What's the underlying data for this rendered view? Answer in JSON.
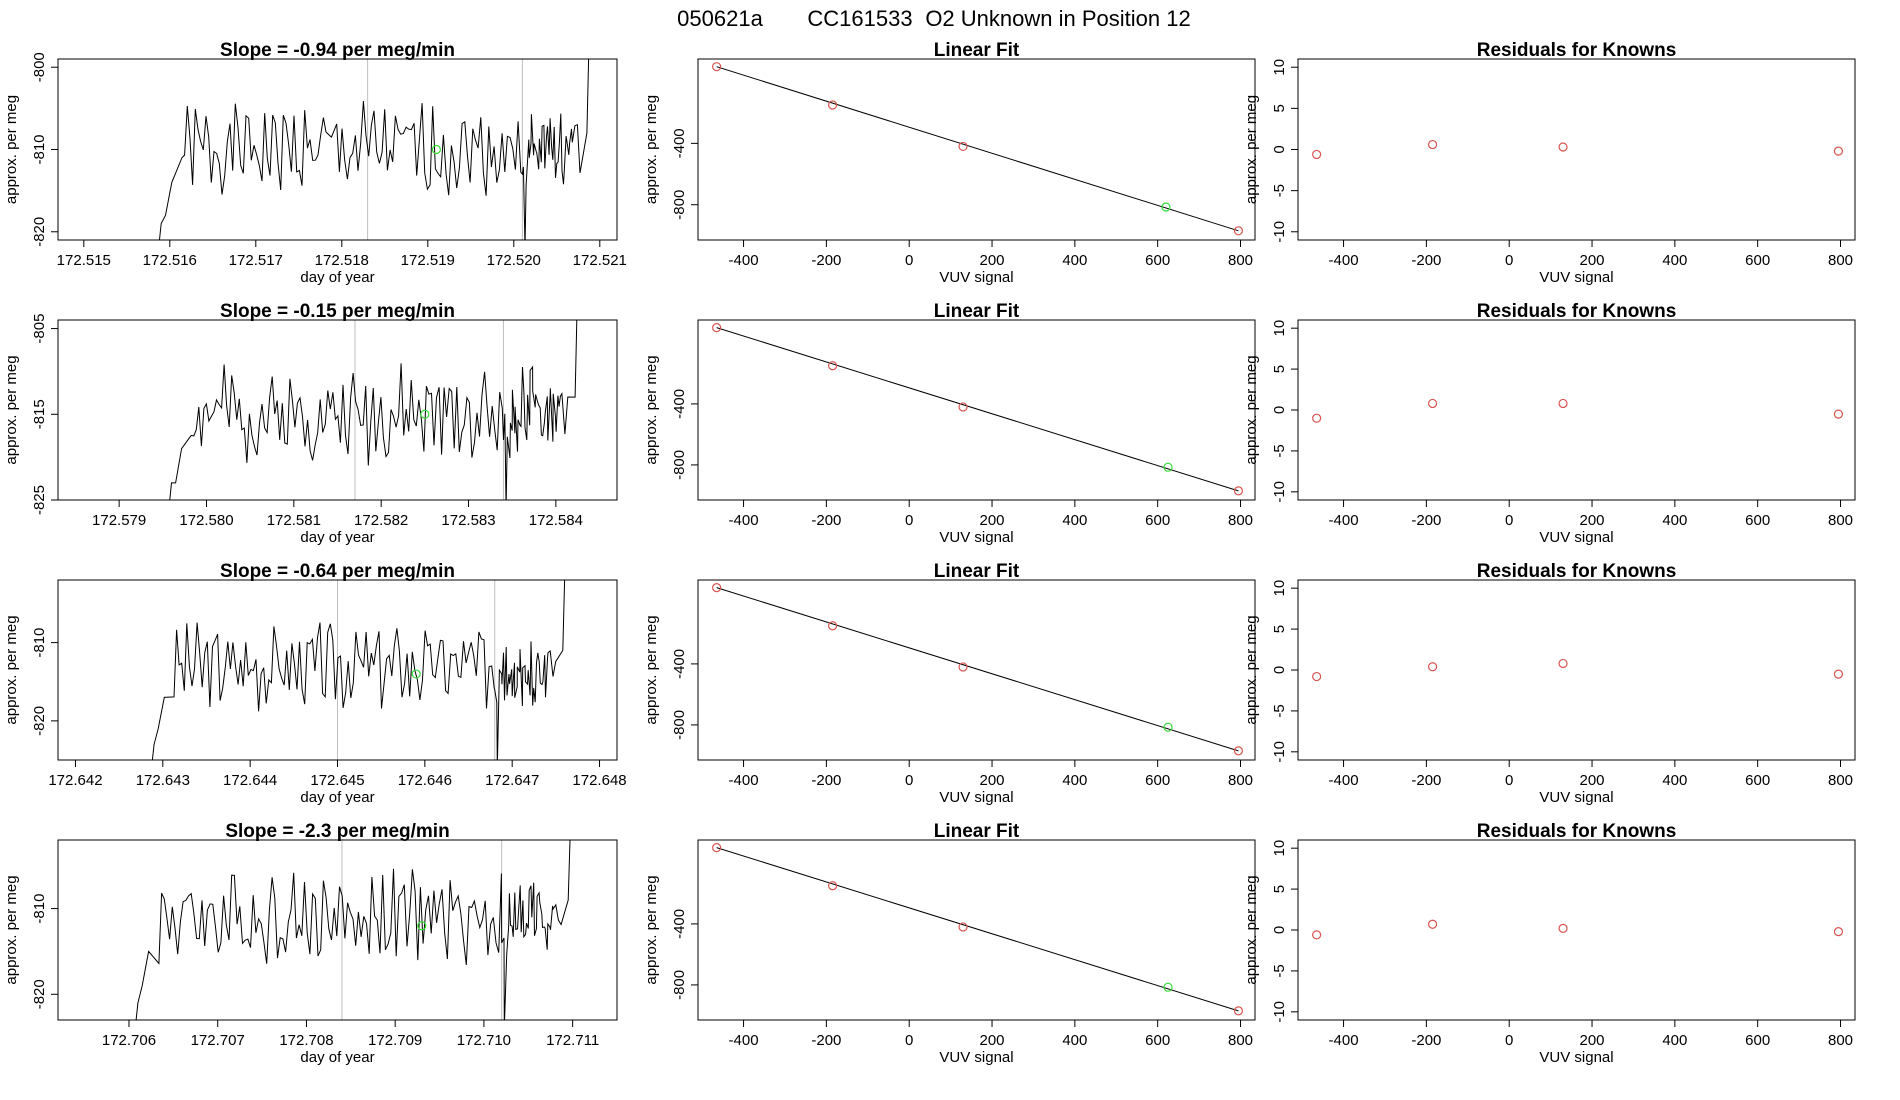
{
  "figure": {
    "title_parts": [
      "050621a",
      "CC161533",
      "O2 Unknown in Position  12"
    ]
  },
  "colors": {
    "series_line": "#000000",
    "known_points": "#d9534f",
    "unknown_point": "#33dd33",
    "guide_line": "#bfbfbf",
    "frame": "#000000"
  },
  "chart_data": [
    {
      "type": "line",
      "row": 0,
      "col": 0,
      "title": "Slope =  -0.94  per meg/min",
      "xlabel": "day of year",
      "ylabel": "approx. per meg",
      "xlim": [
        172.5147,
        172.5212
      ],
      "ylim": [
        -821,
        -799
      ],
      "xticks": [
        172.515,
        172.516,
        172.517,
        172.518,
        172.519,
        172.52,
        172.521
      ],
      "xtick_labels": [
        "172.515",
        "172.516",
        "172.517",
        "172.518",
        "172.519",
        "172.520",
        "172.521"
      ],
      "yticks": [
        -800,
        -810,
        -820
      ],
      "ytick_labels": [
        "-800",
        "-810",
        "-820"
      ],
      "series_start": 172.5159,
      "series_end": 172.52085,
      "series_base": -810,
      "series_amp": 4.5,
      "seed": 1,
      "vlines": [
        172.5183,
        172.5201
      ],
      "highlight": {
        "x": 172.5191,
        "y": -810
      },
      "head": -822,
      "tail": -799
    },
    {
      "type": "scatter",
      "row": 0,
      "col": 1,
      "title": "Linear Fit",
      "xlabel": "VUV signal",
      "ylabel": "approx. per meg",
      "xlim": [
        -510,
        835
      ],
      "ylim": [
        -1030,
        150
      ],
      "xticks": [
        -400,
        -200,
        0,
        200,
        400,
        600,
        800
      ],
      "xtick_labels": [
        "-400",
        "-200",
        "0",
        "200",
        "400",
        "600",
        "800"
      ],
      "yticks": [
        -400,
        -800
      ],
      "ytick_labels": [
        "-400",
        "-800"
      ],
      "knowns": [
        [
          -465,
          100
        ],
        [
          -185,
          -150
        ],
        [
          130,
          -420
        ],
        [
          795,
          -970
        ]
      ],
      "unknown": [
        620,
        -815
      ],
      "fit_line": [
        [
          -465,
          100
        ],
        [
          795,
          -970
        ]
      ]
    },
    {
      "type": "scatter",
      "row": 0,
      "col": 2,
      "title": "Residuals for Knowns",
      "xlabel": "VUV signal",
      "ylabel": "approx. per meg",
      "xlim": [
        -510,
        835
      ],
      "ylim": [
        -11,
        11
      ],
      "xticks": [
        -400,
        -200,
        0,
        200,
        400,
        600,
        800
      ],
      "xtick_labels": [
        "-400",
        "-200",
        "0",
        "200",
        "400",
        "600",
        "800"
      ],
      "yticks": [
        10,
        5,
        0,
        -5,
        -10
      ],
      "ytick_labels": [
        "10",
        "5",
        "0",
        "-5",
        "-10"
      ],
      "knowns": [
        [
          -465,
          -0.6
        ],
        [
          -185,
          0.6
        ],
        [
          130,
          0.3
        ],
        [
          795,
          -0.2
        ]
      ]
    },
    {
      "type": "line",
      "row": 1,
      "col": 0,
      "title": "Slope =  -0.15  per meg/min",
      "xlabel": "day of year",
      "ylabel": "approx. per meg",
      "xlim": [
        172.5783,
        172.5847
      ],
      "ylim": [
        -825,
        -804
      ],
      "xticks": [
        172.579,
        172.58,
        172.581,
        172.582,
        172.583,
        172.584
      ],
      "xtick_labels": [
        "172.579",
        "172.580",
        "172.581",
        "172.582",
        "172.583",
        "172.584"
      ],
      "yticks": [
        -805,
        -815,
        -825
      ],
      "ytick_labels": [
        "-805",
        "-815",
        "-825"
      ],
      "series_start": 172.5796,
      "series_end": 172.58422,
      "series_base": -815,
      "series_amp": 4.5,
      "seed": 2,
      "vlines": [
        172.5817,
        172.5834
      ],
      "highlight": {
        "x": 172.5825,
        "y": -815
      },
      "head": -826,
      "tail": -804
    },
    {
      "type": "scatter",
      "row": 1,
      "col": 1,
      "title": "Linear Fit",
      "xlabel": "VUV signal",
      "ylabel": "approx. per meg",
      "xlim": [
        -510,
        835
      ],
      "ylim": [
        -1030,
        150
      ],
      "xticks": [
        -400,
        -200,
        0,
        200,
        400,
        600,
        800
      ],
      "xtick_labels": [
        "-400",
        "-200",
        "0",
        "200",
        "400",
        "600",
        "800"
      ],
      "yticks": [
        -400,
        -800
      ],
      "ytick_labels": [
        "-400",
        "-800"
      ],
      "knowns": [
        [
          -465,
          100
        ],
        [
          -185,
          -150
        ],
        [
          130,
          -420
        ],
        [
          795,
          -970
        ]
      ],
      "unknown": [
        625,
        -815
      ],
      "fit_line": [
        [
          -465,
          100
        ],
        [
          795,
          -970
        ]
      ]
    },
    {
      "type": "scatter",
      "row": 1,
      "col": 2,
      "title": "Residuals for Knowns",
      "xlabel": "VUV signal",
      "ylabel": "approx. per meg",
      "xlim": [
        -510,
        835
      ],
      "ylim": [
        -11,
        11
      ],
      "xticks": [
        -400,
        -200,
        0,
        200,
        400,
        600,
        800
      ],
      "xtick_labels": [
        "-400",
        "-200",
        "0",
        "200",
        "400",
        "600",
        "800"
      ],
      "yticks": [
        10,
        5,
        0,
        -5,
        -10
      ],
      "ytick_labels": [
        "10",
        "5",
        "0",
        "-5",
        "-10"
      ],
      "knowns": [
        [
          -465,
          -1.0
        ],
        [
          -185,
          0.8
        ],
        [
          130,
          0.8
        ],
        [
          795,
          -0.5
        ]
      ]
    },
    {
      "type": "line",
      "row": 2,
      "col": 0,
      "title": "Slope =  -0.64  per meg/min",
      "xlabel": "day of year",
      "ylabel": "approx. per meg",
      "xlim": [
        172.6418,
        172.6482
      ],
      "ylim": [
        -825,
        -802
      ],
      "xticks": [
        172.642,
        172.643,
        172.644,
        172.645,
        172.646,
        172.647,
        172.648
      ],
      "xtick_labels": [
        "172.642",
        "172.643",
        "172.644",
        "172.645",
        "172.646",
        "172.647",
        "172.648"
      ],
      "yticks": [
        -810,
        -820
      ],
      "ytick_labels": [
        "-810",
        "-820"
      ],
      "series_start": 172.6429,
      "series_end": 172.64758,
      "series_base": -813,
      "series_amp": 4.5,
      "seed": 3,
      "vlines": [
        172.645,
        172.6468
      ],
      "highlight": {
        "x": 172.6459,
        "y": -814
      },
      "head": -826,
      "tail": -802
    },
    {
      "type": "scatter",
      "row": 2,
      "col": 1,
      "title": "Linear Fit",
      "xlabel": "VUV signal",
      "ylabel": "approx. per meg",
      "xlim": [
        -510,
        835
      ],
      "ylim": [
        -1030,
        150
      ],
      "xticks": [
        -400,
        -200,
        0,
        200,
        400,
        600,
        800
      ],
      "xtick_labels": [
        "-400",
        "-200",
        "0",
        "200",
        "400",
        "600",
        "800"
      ],
      "yticks": [
        -400,
        -800
      ],
      "ytick_labels": [
        "-400",
        "-800"
      ],
      "knowns": [
        [
          -465,
          100
        ],
        [
          -185,
          -150
        ],
        [
          130,
          -420
        ],
        [
          795,
          -970
        ]
      ],
      "unknown": [
        625,
        -815
      ],
      "fit_line": [
        [
          -465,
          100
        ],
        [
          795,
          -970
        ]
      ]
    },
    {
      "type": "scatter",
      "row": 2,
      "col": 2,
      "title": "Residuals for Knowns",
      "xlabel": "VUV signal",
      "ylabel": "approx. per meg",
      "xlim": [
        -510,
        835
      ],
      "ylim": [
        -11,
        11
      ],
      "xticks": [
        -400,
        -200,
        0,
        200,
        400,
        600,
        800
      ],
      "xtick_labels": [
        "-400",
        "-200",
        "0",
        "200",
        "400",
        "600",
        "800"
      ],
      "yticks": [
        10,
        5,
        0,
        -5,
        -10
      ],
      "ytick_labels": [
        "10",
        "5",
        "0",
        "-5",
        "-10"
      ],
      "knowns": [
        [
          -465,
          -0.8
        ],
        [
          -185,
          0.4
        ],
        [
          130,
          0.8
        ],
        [
          795,
          -0.5
        ]
      ]
    },
    {
      "type": "line",
      "row": 3,
      "col": 0,
      "title": "Slope =  -2.3  per meg/min",
      "xlabel": "day of year",
      "ylabel": "approx. per meg",
      "xlim": [
        172.7052,
        172.7115
      ],
      "ylim": [
        -823,
        -802
      ],
      "xticks": [
        172.706,
        172.707,
        172.708,
        172.709,
        172.71,
        172.711
      ],
      "xtick_labels": [
        "172.706",
        "172.707",
        "172.708",
        "172.709",
        "172.710",
        "172.711"
      ],
      "yticks": [
        -810,
        -820
      ],
      "ytick_labels": [
        "-810",
        "-820"
      ],
      "series_start": 172.7061,
      "series_end": 172.71095,
      "series_base": -811,
      "series_amp": 4.5,
      "seed": 4,
      "vlines": [
        172.7084,
        172.7102
      ],
      "highlight": {
        "x": 172.7093,
        "y": -812
      },
      "head": -824,
      "tail": -802
    },
    {
      "type": "scatter",
      "row": 3,
      "col": 1,
      "title": "Linear Fit",
      "xlabel": "VUV signal",
      "ylabel": "approx. per meg",
      "xlim": [
        -510,
        835
      ],
      "ylim": [
        -1030,
        150
      ],
      "xticks": [
        -400,
        -200,
        0,
        200,
        400,
        600,
        800
      ],
      "xtick_labels": [
        "-400",
        "-200",
        "0",
        "200",
        "400",
        "600",
        "800"
      ],
      "yticks": [
        -400,
        -800
      ],
      "ytick_labels": [
        "-400",
        "-800"
      ],
      "knowns": [
        [
          -465,
          100
        ],
        [
          -185,
          -150
        ],
        [
          130,
          -420
        ],
        [
          795,
          -970
        ]
      ],
      "unknown": [
        625,
        -815
      ],
      "fit_line": [
        [
          -465,
          100
        ],
        [
          795,
          -970
        ]
      ]
    },
    {
      "type": "scatter",
      "row": 3,
      "col": 2,
      "title": "Residuals for Knowns",
      "xlabel": "VUV signal",
      "ylabel": "approx. per meg",
      "xlim": [
        -510,
        835
      ],
      "ylim": [
        -11,
        11
      ],
      "xticks": [
        -400,
        -200,
        0,
        200,
        400,
        600,
        800
      ],
      "xtick_labels": [
        "-400",
        "-200",
        "0",
        "200",
        "400",
        "600",
        "800"
      ],
      "yticks": [
        10,
        5,
        0,
        -5,
        -10
      ],
      "ytick_labels": [
        "10",
        "5",
        "0",
        "-5",
        "-10"
      ],
      "knowns": [
        [
          -465,
          -0.6
        ],
        [
          -185,
          0.7
        ],
        [
          130,
          0.2
        ],
        [
          795,
          -0.2
        ]
      ]
    }
  ]
}
